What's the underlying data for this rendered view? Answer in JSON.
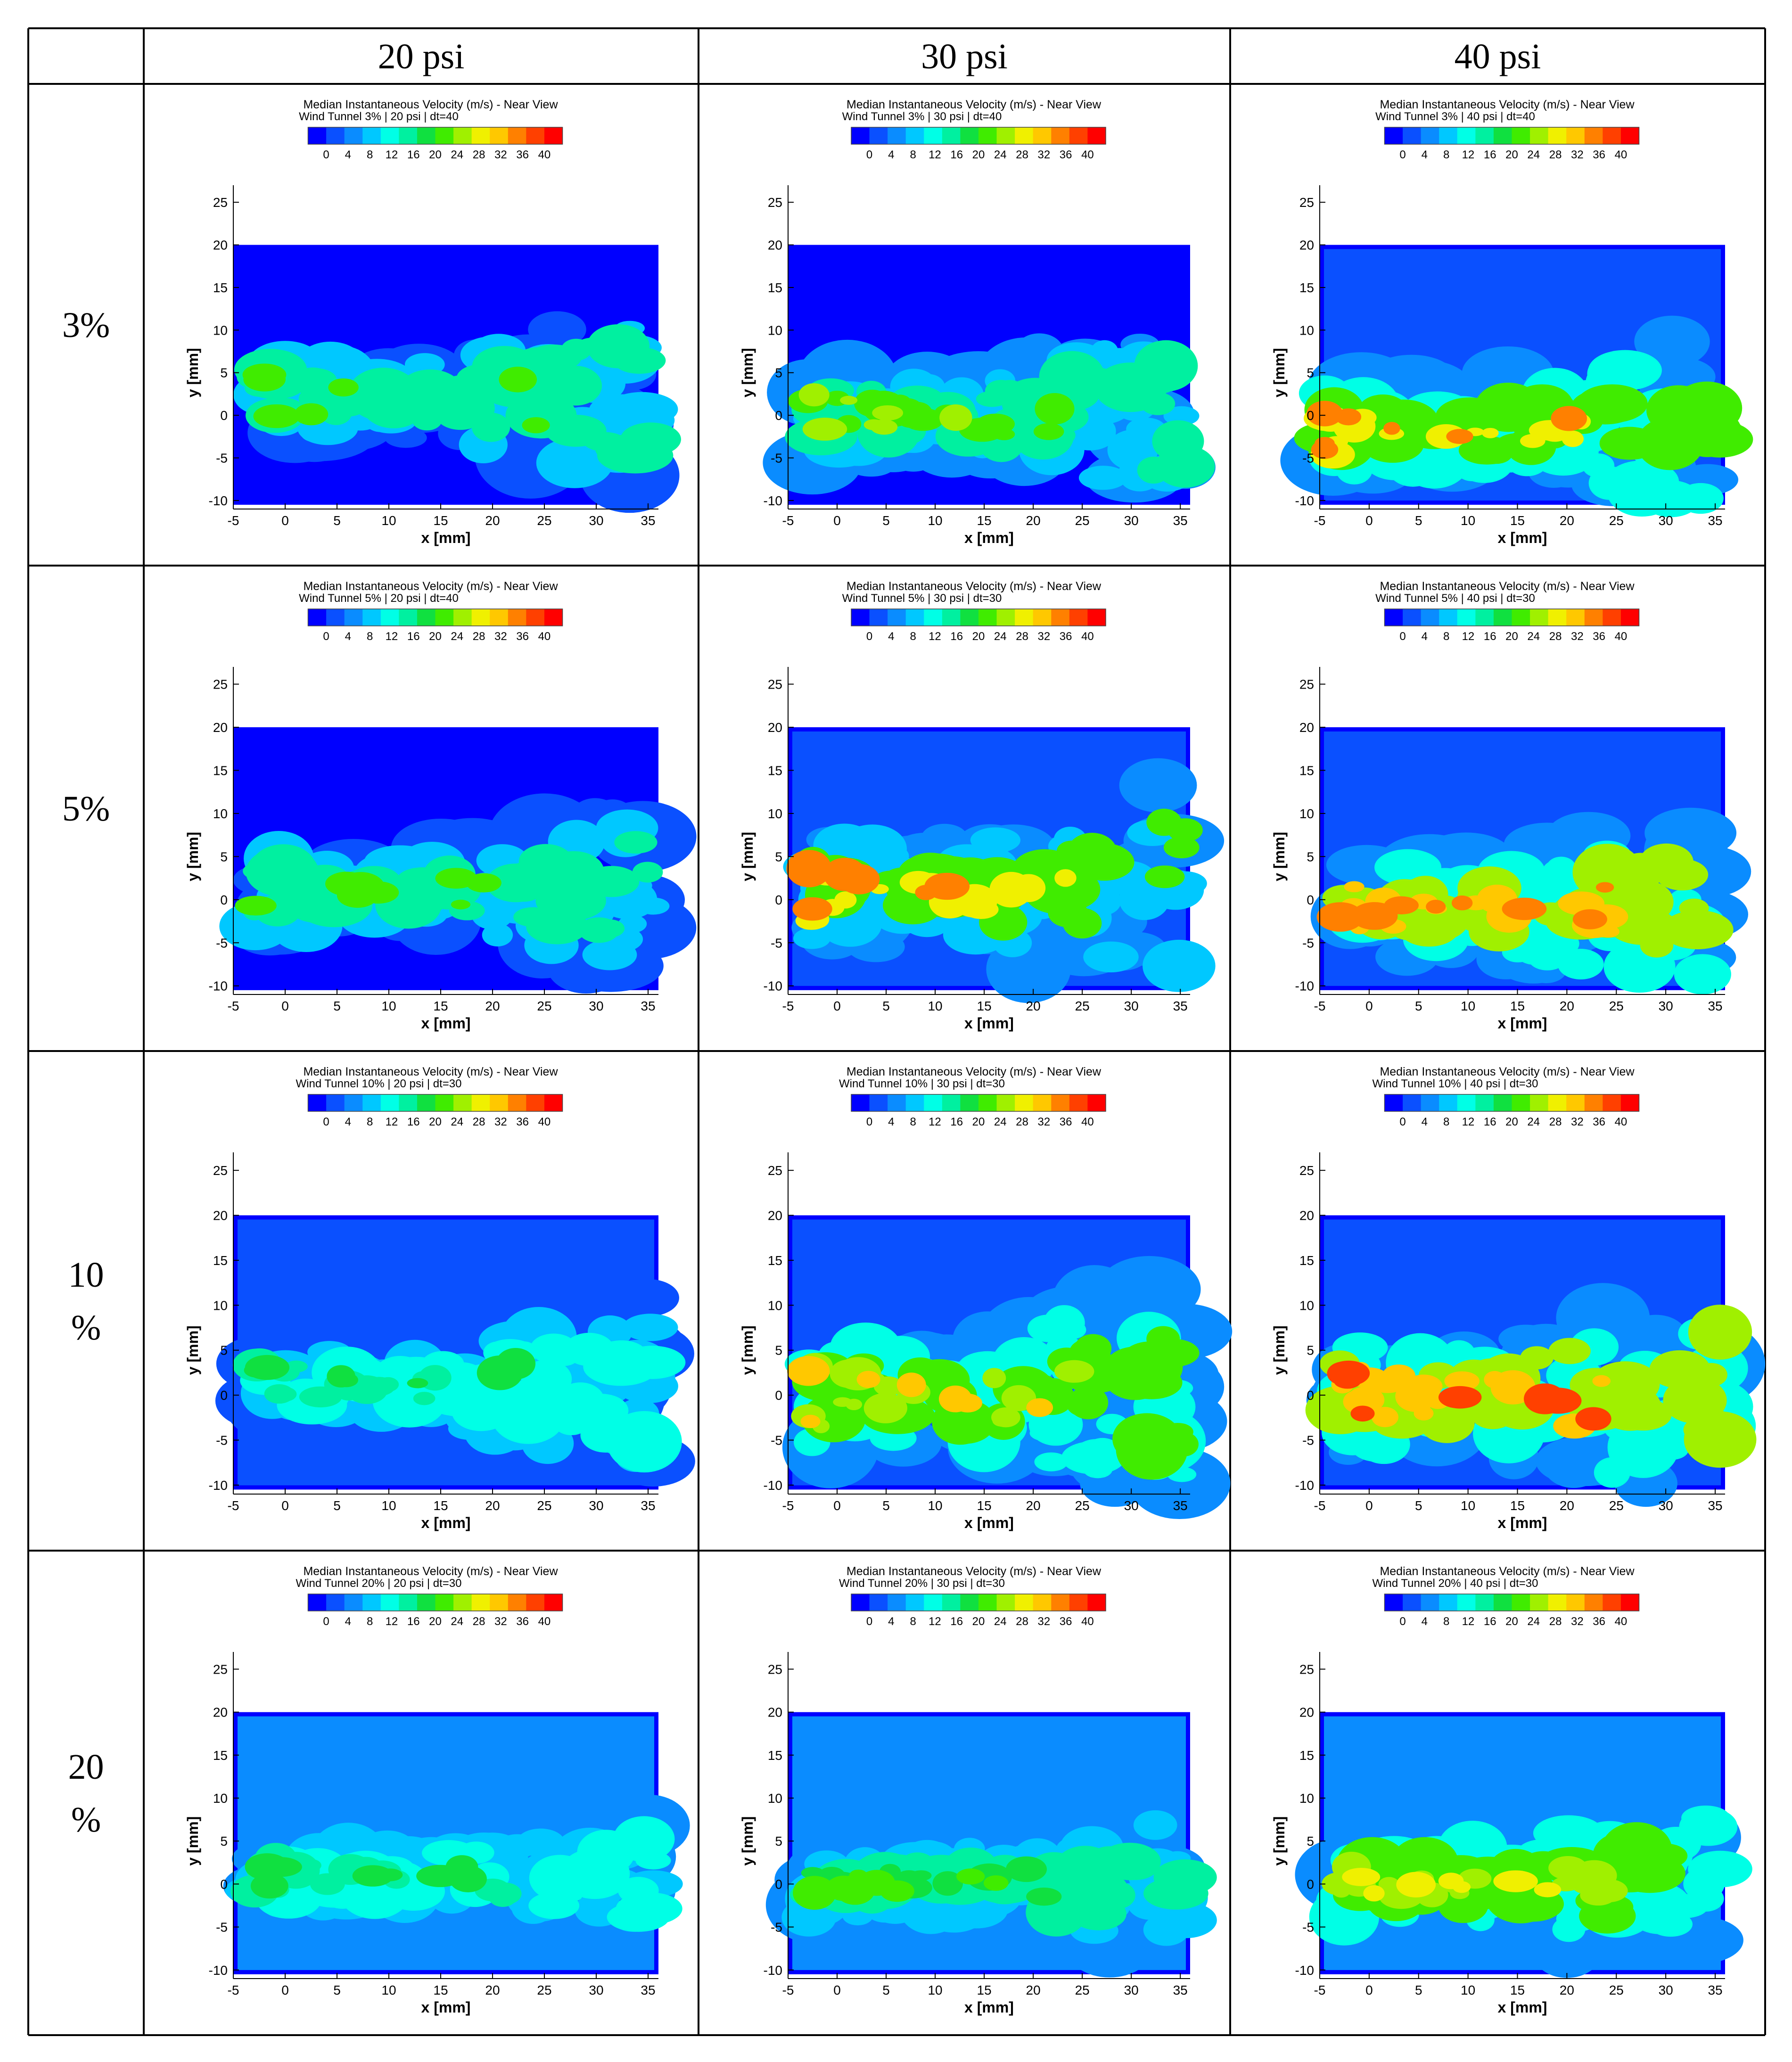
{
  "table": {
    "corner": "",
    "columns": [
      "20 psi",
      "30 psi",
      "40 psi"
    ],
    "rows": [
      "3%",
      "5%",
      "10\n%",
      "20\n%"
    ]
  },
  "chart_data": {
    "type": "heatmap",
    "title": "Median Instantaneous Velocity (m/s) - Near View",
    "xlabel": "x [mm]",
    "ylabel": "y [mm]",
    "xlim": [
      -5,
      36
    ],
    "ylim": [
      -11,
      27
    ],
    "x_ticks": [
      -5,
      0,
      5,
      10,
      15,
      20,
      25,
      30,
      35
    ],
    "y_ticks": [
      -10,
      -5,
      0,
      5,
      10,
      15,
      20,
      25
    ],
    "colorbar": {
      "min": 0,
      "max": 40,
      "tick_labels": [
        "0",
        "4",
        "8",
        "12",
        "16",
        "20",
        "24",
        "28",
        "32",
        "36",
        "40"
      ],
      "colors": [
        "#0000ff",
        "#0a50ff",
        "#0a8cff",
        "#00c8ff",
        "#00ffe6",
        "#00f0a0",
        "#10e040",
        "#40ec00",
        "#a0f000",
        "#f0f000",
        "#ffc800",
        "#ff8000",
        "#ff4000",
        "#ff0000"
      ]
    },
    "panels": [
      {
        "row": "3%",
        "column": "20 psi",
        "subtitle": "Wind Tunnel 3% | 20 psi | dt=40",
        "plume_extent_mm": [
          -3,
          36
        ],
        "plume_y_center_mm": 2,
        "plume_y_halfwidth_mm": 5,
        "plume_tilt_mm_per_mm": 0.25,
        "background_speed_ms": 2,
        "plume_speed_ms": 9,
        "peak_speed_ms": 20
      },
      {
        "row": "3%",
        "column": "30 psi",
        "subtitle": "Wind Tunnel 3% | 30 psi | dt=40",
        "plume_extent_mm": [
          -3,
          36
        ],
        "plume_y_center_mm": 0,
        "plume_y_halfwidth_mm": 6,
        "plume_tilt_mm_per_mm": 0.2,
        "background_speed_ms": 2,
        "plume_speed_ms": 10,
        "peak_speed_ms": 24
      },
      {
        "row": "3%",
        "column": "40 psi",
        "subtitle": "Wind Tunnel 3% | 40 psi | dt=40",
        "plume_extent_mm": [
          -5,
          36
        ],
        "plume_y_center_mm": -2,
        "plume_y_halfwidth_mm": 7,
        "plume_tilt_mm_per_mm": 0.15,
        "background_speed_ms": 3,
        "plume_speed_ms": 12,
        "peak_speed_ms": 32
      },
      {
        "row": "5%",
        "column": "20 psi",
        "subtitle": "Wind Tunnel 5% | 20 psi | dt=40",
        "plume_extent_mm": [
          -3,
          36
        ],
        "plume_y_center_mm": 1,
        "plume_y_halfwidth_mm": 5,
        "plume_tilt_mm_per_mm": 0.2,
        "background_speed_ms": 2,
        "plume_speed_ms": 9,
        "peak_speed_ms": 20
      },
      {
        "row": "5%",
        "column": "30 psi",
        "subtitle": "Wind Tunnel 5% | 30 psi | dt=30",
        "plume_extent_mm": [
          -3,
          36
        ],
        "plume_y_center_mm": 1,
        "plume_y_halfwidth_mm": 7,
        "plume_tilt_mm_per_mm": 0.25,
        "background_speed_ms": 3,
        "plume_speed_ms": 11,
        "peak_speed_ms": 32
      },
      {
        "row": "5%",
        "column": "40 psi",
        "subtitle": "Wind Tunnel 5% | 40 psi | dt=30",
        "plume_extent_mm": [
          -3,
          36
        ],
        "plume_y_center_mm": -1,
        "plume_y_halfwidth_mm": 7,
        "plume_tilt_mm_per_mm": 0.15,
        "background_speed_ms": 3,
        "plume_speed_ms": 12,
        "peak_speed_ms": 34
      },
      {
        "row": "10\n%",
        "column": "20 psi",
        "subtitle": "Wind Tunnel 10% | 20 psi | dt=30",
        "plume_extent_mm": [
          -3,
          36
        ],
        "plume_y_center_mm": 1,
        "plume_y_halfwidth_mm": 5,
        "plume_tilt_mm_per_mm": 0.2,
        "background_speed_ms": 3,
        "plume_speed_ms": 9,
        "peak_speed_ms": 18
      },
      {
        "row": "10\n%",
        "column": "30 psi",
        "subtitle": "Wind Tunnel 10% | 30 psi | dt=30",
        "plume_extent_mm": [
          -3,
          36
        ],
        "plume_y_center_mm": 0,
        "plume_y_halfwidth_mm": 7,
        "plume_tilt_mm_per_mm": 0.25,
        "background_speed_ms": 3,
        "plume_speed_ms": 12,
        "peak_speed_ms": 30
      },
      {
        "row": "10\n%",
        "column": "40 psi",
        "subtitle": "Wind Tunnel 10% | 40 psi | dt=30",
        "plume_extent_mm": [
          -3,
          36
        ],
        "plume_y_center_mm": 0,
        "plume_y_halfwidth_mm": 8,
        "plume_tilt_mm_per_mm": 0.2,
        "background_speed_ms": 3,
        "plume_speed_ms": 13,
        "peak_speed_ms": 36
      },
      {
        "row": "20\n%",
        "column": "20 psi",
        "subtitle": "Wind Tunnel 20% | 20 psi | dt=30",
        "plume_extent_mm": [
          -3,
          36
        ],
        "plume_y_center_mm": 1,
        "plume_y_halfwidth_mm": 5,
        "plume_tilt_mm_per_mm": 0.15,
        "background_speed_ms": 6,
        "plume_speed_ms": 10,
        "peak_speed_ms": 18
      },
      {
        "row": "20\n%",
        "column": "30 psi",
        "subtitle": "Wind Tunnel 20% | 30 psi | dt=30",
        "plume_extent_mm": [
          -3,
          36
        ],
        "plume_y_center_mm": 0,
        "plume_y_halfwidth_mm": 6,
        "plume_tilt_mm_per_mm": 0.1,
        "background_speed_ms": 6,
        "plume_speed_ms": 11,
        "peak_speed_ms": 22
      },
      {
        "row": "20\n%",
        "column": "40 psi",
        "subtitle": "Wind Tunnel 20% | 40 psi | dt=30",
        "plume_extent_mm": [
          -3,
          36
        ],
        "plume_y_center_mm": 0,
        "plume_y_halfwidth_mm": 7,
        "plume_tilt_mm_per_mm": 0.1,
        "background_speed_ms": 6,
        "plume_speed_ms": 12,
        "peak_speed_ms": 28
      }
    ]
  }
}
